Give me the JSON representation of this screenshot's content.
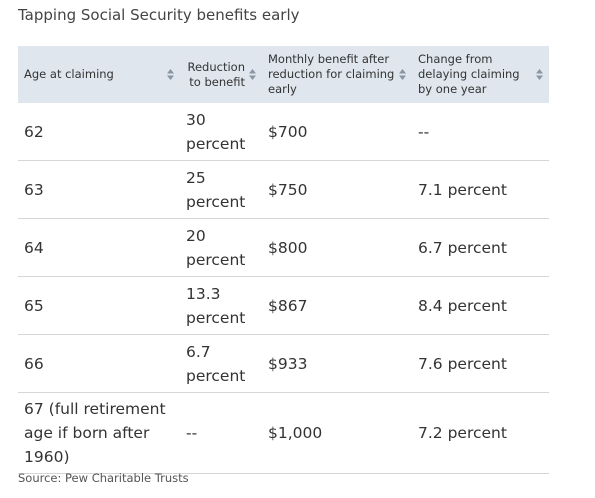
{
  "header": {
    "title": "Tapping Social Security benefits early"
  },
  "table": {
    "columns": [
      "Age at claiming",
      "Reduction to benefit",
      "Monthly benefit after reduction for claiming early",
      "Change from delaying claiming by one year"
    ],
    "rows": [
      [
        "62",
        "30 percent",
        "$700",
        "--"
      ],
      [
        "63",
        "25 percent",
        "$750",
        "7.1 percent"
      ],
      [
        "64",
        "20 percent",
        "$800",
        "6.7 percent"
      ],
      [
        "65",
        "13.3 percent",
        "$867",
        "8.4 percent"
      ],
      [
        "66",
        "6.7 percent",
        "$933",
        "7.6 percent"
      ],
      [
        "67 (full retirement age if born after 1960)",
        "--",
        "$1,000",
        "7.2 percent"
      ]
    ]
  },
  "source": "Source: Pew Charitable Trusts"
}
